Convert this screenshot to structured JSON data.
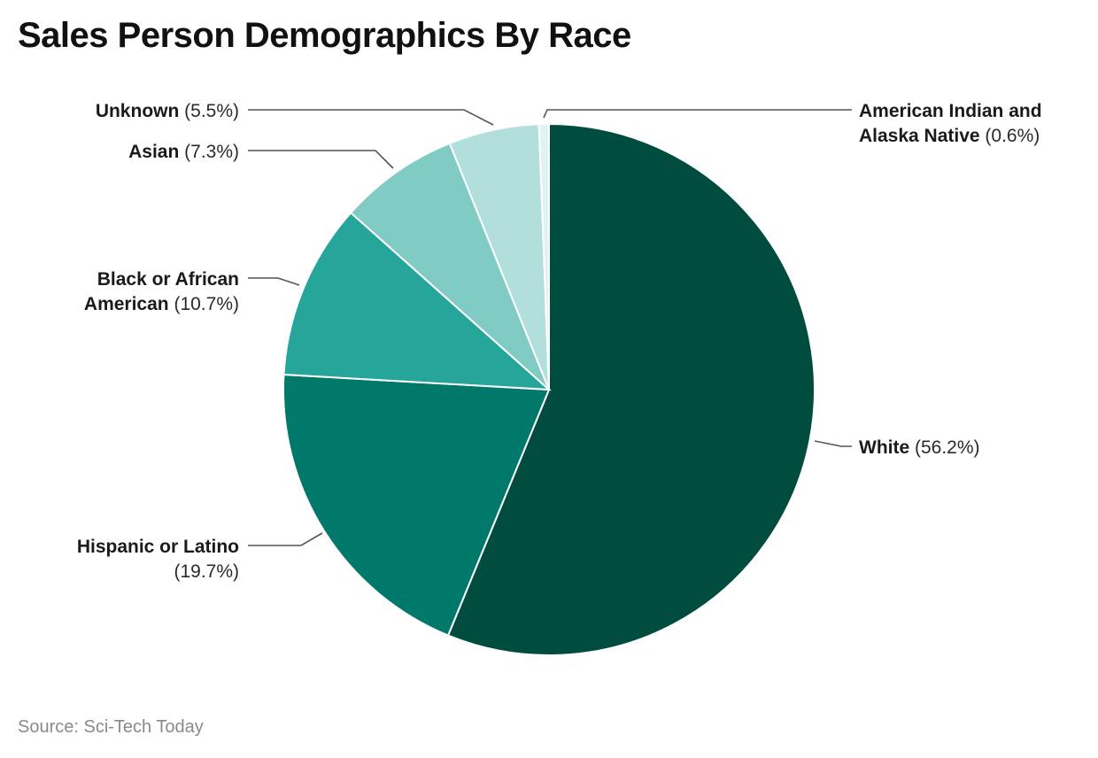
{
  "title": "Sales Person Demographics By Race",
  "source": "Source: Sci-Tech Today",
  "chart_data": {
    "type": "pie",
    "title": "Sales Person Demographics By Race",
    "slices": [
      {
        "name": "White",
        "value": 56.2,
        "value_label": "(56.2%)",
        "color": "#004d40",
        "label_lines": [
          {
            "name": "White",
            "value": "(56.2%)"
          }
        ]
      },
      {
        "name": "Hispanic or Latino",
        "value": 19.7,
        "value_label": "(19.7%)",
        "color": "#00796b",
        "label_lines": [
          {
            "name": "Hispanic or Latino",
            "value": ""
          },
          {
            "name": "",
            "value": "(19.7%)"
          }
        ]
      },
      {
        "name": "Black or African American",
        "value": 10.7,
        "value_label": "(10.7%)",
        "color": "#26a69a",
        "label_lines": [
          {
            "name": "Black or African",
            "value": ""
          },
          {
            "name": "American",
            "value": "(10.7%)"
          }
        ]
      },
      {
        "name": "Asian",
        "value": 7.3,
        "value_label": "(7.3%)",
        "color": "#80cbc4",
        "label_lines": [
          {
            "name": "Asian",
            "value": "(7.3%)"
          }
        ]
      },
      {
        "name": "Unknown",
        "value": 5.5,
        "value_label": "(5.5%)",
        "color": "#b2dfdb",
        "label_lines": [
          {
            "name": "Unknown",
            "value": "(5.5%)"
          }
        ]
      },
      {
        "name": "American Indian and Alaska Native",
        "value": 0.6,
        "value_label": "(0.6%)",
        "color": "#e0f2f1",
        "label_lines": [
          {
            "name": "American Indian and",
            "value": ""
          },
          {
            "name": "Alaska Native",
            "value": "(0.6%)"
          }
        ]
      }
    ]
  }
}
